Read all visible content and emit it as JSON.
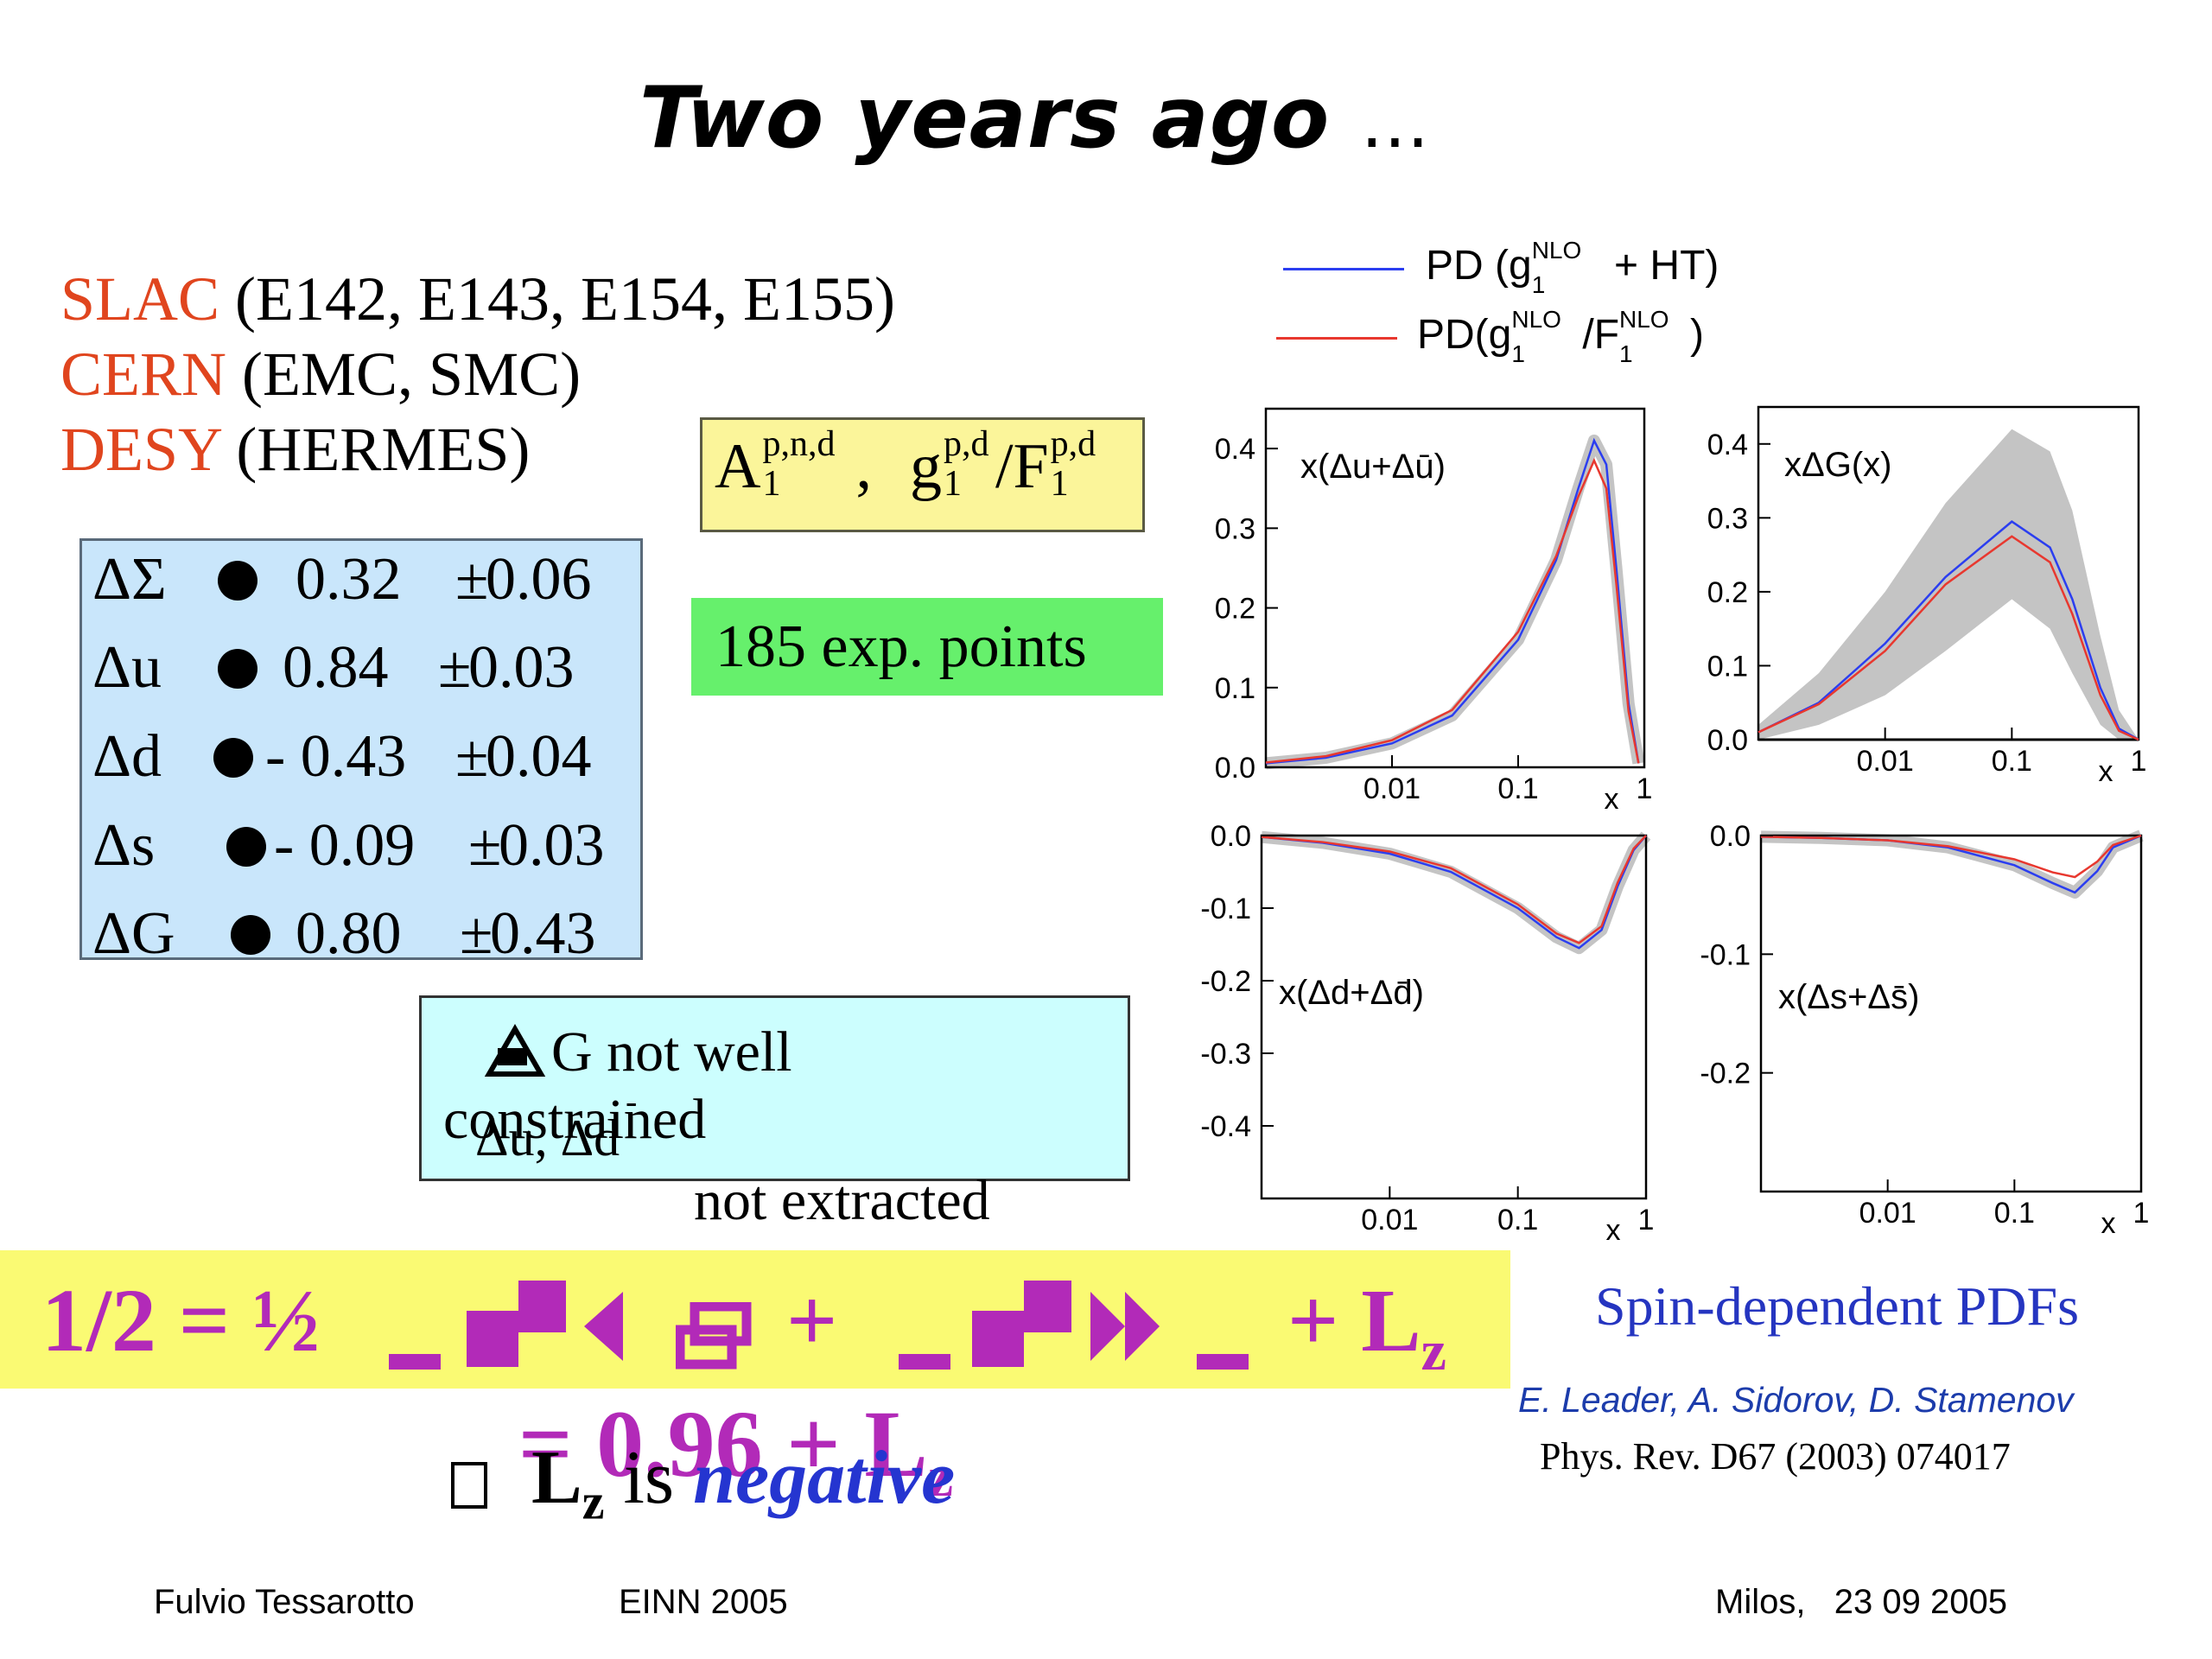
{
  "title": {
    "text": "Two years ago",
    "dots": "…"
  },
  "labs": [
    {
      "org": "SLAC",
      "exps": "(E142, E143, E154, E155)"
    },
    {
      "org": "CERN",
      "exps": "(EMC, SMC)"
    },
    {
      "org": "DESY",
      "exps": "(HERMES)"
    }
  ],
  "deltas": [
    {
      "sym": "ΔΣ",
      "value": "0.32",
      "err": "0.06"
    },
    {
      "sym": "Δu",
      "value": "0.84",
      "err": "0.03"
    },
    {
      "sym": "Δd",
      "value": "- 0.43",
      "err": "0.04"
    },
    {
      "sym": "Δs",
      "value": "- 0.09",
      "err": "0.03"
    },
    {
      "sym": "ΔG",
      "value": "0.80",
      "err": "0.43"
    }
  ],
  "asym": {
    "A": "A",
    "A_sup": "p,n,d",
    "A_sub": "1",
    "sep": ",",
    "g": "g",
    "g_sup": "p,d",
    "g_sub": "1",
    "slash": "/F",
    "F_sup": "p,d",
    "F_sub": "1"
  },
  "points": "185 exp. points",
  "note": {
    "line1": "G  not well",
    "line2": "constrained",
    "line3": "Δu, Δd",
    "line3_bar": "-",
    "line4": "not extracted"
  },
  "spin_eq": {
    "lhs": "1/2 = ½",
    "plus1": "+",
    "plus2": "+ L",
    "sub_z": "z",
    "line2": "= 0.96 + L",
    "line2_sub": "z"
  },
  "conclusion": {
    "box": "",
    "L": "L",
    "sub": "z",
    "is": "is",
    "neg": "negative"
  },
  "right": {
    "label": "Spin-dependent PDFs",
    "authors": "E. Leader, A. Sidorov, D. Stamenov",
    "journal": "Phys. Rev. D67 (2003) 074017"
  },
  "legend": [
    {
      "name": "PD (g",
      "sup": "NLO",
      "sub": "1",
      "rest": " + HT)",
      "color": "#2b3ef0"
    },
    {
      "name": "PD(g",
      "sup": "NLO",
      "sub": "1",
      "rest": "/F",
      "sup2": "NLO",
      "sub2": "1",
      "end": ")",
      "color": "#e8382f"
    }
  ],
  "chart_data": [
    {
      "type": "line",
      "label": "x(Δu+Δū)",
      "xscale": "log",
      "xlim": [
        0.001,
        1
      ],
      "ylim": [
        0,
        0.45
      ],
      "xticks": [
        "0.01",
        "0.1",
        "x",
        "1"
      ],
      "yticks": [
        "0.4",
        "0.3",
        "0.2",
        "0.1",
        "0.0"
      ],
      "x": [
        0.001,
        0.003,
        0.01,
        0.03,
        0.1,
        0.2,
        0.3,
        0.4,
        0.5,
        0.6,
        0.75,
        0.9
      ],
      "series": [
        {
          "name": "PD (g1NLO + HT)",
          "values": [
            0.005,
            0.012,
            0.03,
            0.065,
            0.16,
            0.26,
            0.35,
            0.41,
            0.38,
            0.25,
            0.08,
            0.005
          ]
        },
        {
          "name": "PD(g1NLO/F1NLO)",
          "values": [
            0.006,
            0.014,
            0.034,
            0.072,
            0.17,
            0.265,
            0.34,
            0.385,
            0.35,
            0.23,
            0.07,
            0.005
          ]
        }
      ]
    },
    {
      "type": "line",
      "label": "xΔG(x)",
      "xscale": "log",
      "xlim": [
        0.001,
        1
      ],
      "ylim": [
        0,
        0.45
      ],
      "xticks": [
        "0.01",
        "0.1",
        "x",
        "1"
      ],
      "yticks": [
        "0.4",
        "0.3",
        "0.2",
        "0.1",
        "0.0"
      ],
      "x": [
        0.001,
        0.003,
        0.01,
        0.03,
        0.1,
        0.2,
        0.3,
        0.5,
        0.7,
        1
      ],
      "series": [
        {
          "name": "PD (g1NLO + HT)",
          "values": [
            0.01,
            0.05,
            0.13,
            0.22,
            0.295,
            0.26,
            0.19,
            0.07,
            0.015,
            0.0
          ]
        },
        {
          "name": "PD(g1NLO/F1NLO)",
          "values": [
            0.01,
            0.048,
            0.12,
            0.21,
            0.275,
            0.24,
            0.17,
            0.06,
            0.012,
            0.0
          ]
        }
      ],
      "band_upper": [
        0.02,
        0.09,
        0.2,
        0.32,
        0.42,
        0.39,
        0.31,
        0.14,
        0.04,
        0.0
      ],
      "band_lower": [
        0.0,
        0.02,
        0.06,
        0.12,
        0.19,
        0.15,
        0.09,
        0.02,
        0.0,
        0.0
      ]
    },
    {
      "type": "line",
      "label": "x(Δd+Δd̄)",
      "xscale": "log",
      "xlim": [
        0.001,
        1
      ],
      "ylim": [
        -0.5,
        0
      ],
      "xticks": [
        "0.01",
        "0.1",
        "x",
        "1"
      ],
      "yticks": [
        "0.0",
        "-0.1",
        "-0.2",
        "-0.3",
        "-0.4"
      ],
      "x": [
        0.001,
        0.003,
        0.01,
        0.03,
        0.1,
        0.2,
        0.3,
        0.45,
        0.6,
        0.8,
        1
      ],
      "series": [
        {
          "name": "PD (g1NLO + HT)",
          "values": [
            -0.002,
            -0.01,
            -0.025,
            -0.05,
            -0.1,
            -0.14,
            -0.155,
            -0.13,
            -0.07,
            -0.02,
            0
          ]
        },
        {
          "name": "PD(g1NLO/F1NLO)",
          "values": [
            -0.002,
            -0.009,
            -0.022,
            -0.045,
            -0.095,
            -0.135,
            -0.148,
            -0.125,
            -0.065,
            -0.018,
            0
          ]
        }
      ]
    },
    {
      "type": "line",
      "label": "x(Δs+Δs̄)",
      "xscale": "log",
      "xlim": [
        0.001,
        1
      ],
      "ylim": [
        -0.3,
        0
      ],
      "xticks": [
        "0.01",
        "0.1",
        "x",
        "1"
      ],
      "yticks": [
        "0.0",
        "-0.1",
        "-0.2"
      ],
      "x": [
        0.001,
        0.003,
        0.01,
        0.03,
        0.1,
        0.2,
        0.3,
        0.45,
        0.6,
        1
      ],
      "series": [
        {
          "name": "PD (g1NLO + HT)",
          "values": [
            -0.001,
            -0.002,
            -0.004,
            -0.01,
            -0.025,
            -0.04,
            -0.048,
            -0.03,
            -0.01,
            0
          ]
        },
        {
          "name": "PD(g1NLO/F1NLO)",
          "values": [
            -0.001,
            -0.002,
            -0.004,
            -0.009,
            -0.02,
            -0.031,
            -0.035,
            -0.022,
            -0.008,
            0
          ]
        }
      ]
    }
  ]
}
